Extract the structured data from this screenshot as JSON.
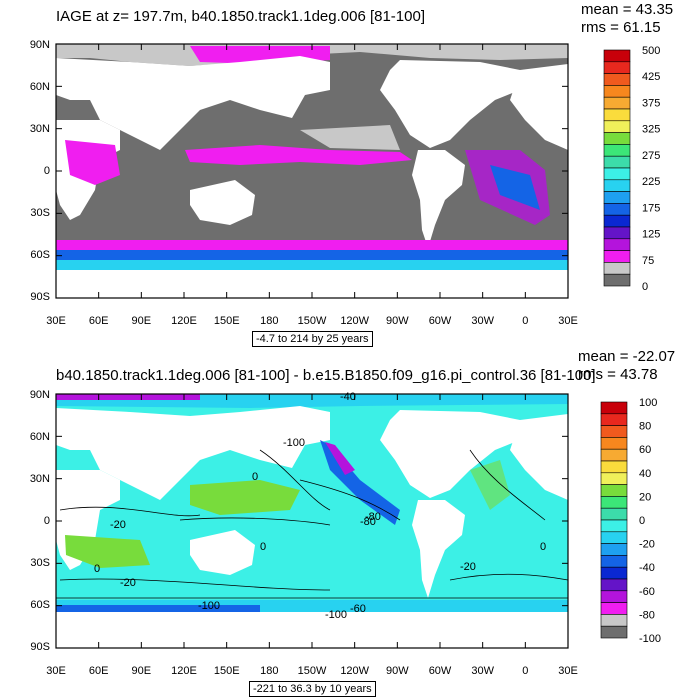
{
  "panels": [
    {
      "title": "IAGE at z= 197.7m, b40.1850.track1.1deg.006 [81-100]",
      "mean_text": "mean = 43.35",
      "rms_text": "rms = 61.15",
      "range_text": "-4.7 to 214 by 25 years",
      "colorbar": {
        "labels": [
          "500",
          "425",
          "375",
          "325",
          "275",
          "225",
          "175",
          "125",
          "75",
          "0"
        ],
        "colors": [
          "#c8000a",
          "#e8281e",
          "#f05a1e",
          "#f7871e",
          "#f7aa32",
          "#fadc3c",
          "#f0f05a",
          "#78dc3c",
          "#3ce678",
          "#3cdcaa",
          "#3cf0e6",
          "#28d2f0",
          "#1ea0f0",
          "#1464e6",
          "#0a28d2",
          "#6414c8",
          "#b414dc",
          "#f01ef0",
          "#c8c8c8",
          "#6e6e6e"
        ]
      }
    },
    {
      "title": "b40.1850.track1.1deg.006 [81-100] - b.e15.B1850.f09_g16.pi_control.36 [81-100]",
      "mean_text": "mean = -22.07",
      "rms_text": "rms = 43.78",
      "range_text": "-221 to 36.3 by 10 years",
      "colorbar": {
        "labels": [
          "100",
          "80",
          "60",
          "40",
          "20",
          "0",
          "-20",
          "-40",
          "-60",
          "-80",
          "-100"
        ],
        "colors": [
          "#c8000a",
          "#e8281e",
          "#f05a1e",
          "#f7871e",
          "#f7aa32",
          "#fadc3c",
          "#f0f05a",
          "#78dc3c",
          "#3ce678",
          "#3cdcaa",
          "#3cf0e6",
          "#28d2f0",
          "#1ea0f0",
          "#1464e6",
          "#0a28d2",
          "#6414c8",
          "#b414dc",
          "#f01ef0",
          "#c8c8c8",
          "#6e6e6e"
        ]
      },
      "contour_labels": [
        "-40",
        "-100",
        "0",
        "-20",
        "0",
        "-20",
        "0",
        "-80",
        "-100",
        "-100",
        "-60",
        "-80",
        "-20",
        "0"
      ]
    }
  ],
  "axes": {
    "lat_labels": [
      "90N",
      "60N",
      "30N",
      "0",
      "30S",
      "60S",
      "90S"
    ],
    "lon_labels": [
      "30E",
      "60E",
      "90E",
      "120E",
      "150E",
      "180",
      "150W",
      "120W",
      "90W",
      "60W",
      "30W",
      "0",
      "30E"
    ]
  },
  "colors": {
    "land": "#ffffff",
    "gray_dark": "#6e6e6e",
    "gray_light": "#c8c8c8",
    "magenta": "#f01ef0",
    "purple": "#b414dc",
    "blue": "#1464e6",
    "cyan": "#3cf0e6",
    "green": "#78dc3c"
  }
}
